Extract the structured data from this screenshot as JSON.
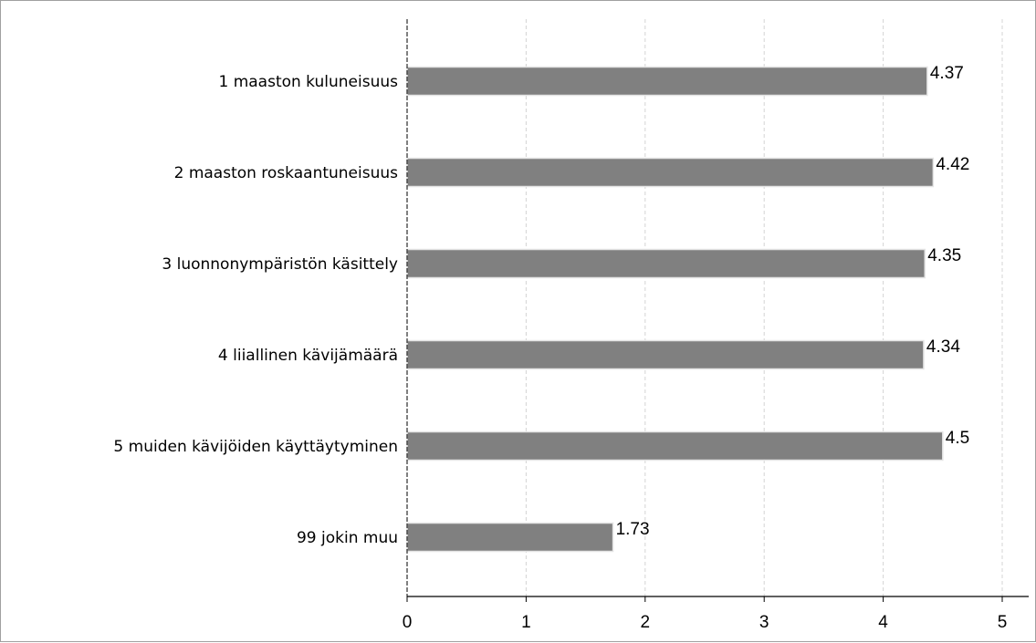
{
  "chart_data": {
    "type": "bar",
    "orientation": "horizontal",
    "categories": [
      "1 maaston kuluneisuus",
      "2 maaston roskaantuneisuus",
      "3 luonnonympäristön käsittely",
      "4 liiallinen kävijämäärä",
      "5 muiden kävijöiden käyttäytyminen",
      "99 jokin muu"
    ],
    "values": [
      4.37,
      4.42,
      4.35,
      4.34,
      4.5,
      1.73
    ],
    "value_labels": [
      "4.37",
      "4.42",
      "4.35",
      "4.34",
      "4.5",
      "1.73"
    ],
    "xlim": [
      0,
      5
    ],
    "xticks": [
      "0",
      "1",
      "2",
      "3",
      "4",
      "5"
    ],
    "grid": "vertical dashed",
    "title": "",
    "xlabel": "",
    "ylabel": "",
    "bar_color": "#808080"
  }
}
